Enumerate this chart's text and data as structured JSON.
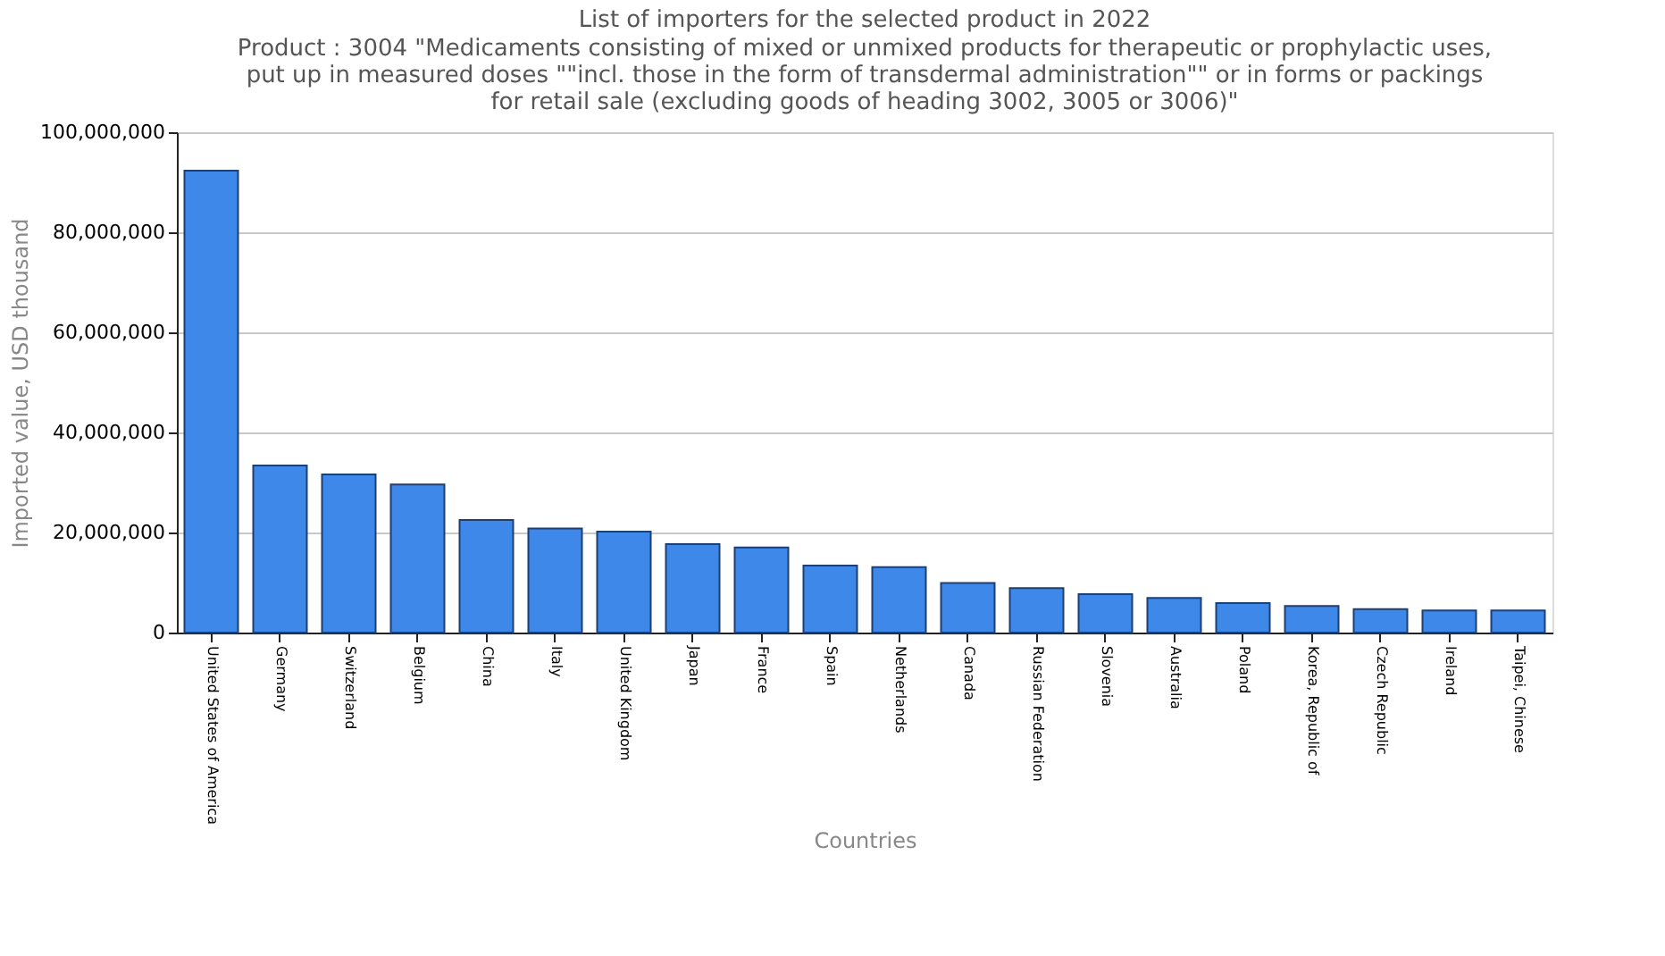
{
  "chart_data": {
    "type": "bar",
    "title": "List of importers for the selected product in 2022",
    "subtitle": "Product : 3004 \"Medicaments consisting of mixed or unmixed products for therapeutic or prophylactic uses, put up in measured doses \"\"incl. those in the form of transdermal administration\"\" or in forms or packings for retail sale (excluding goods of heading 3002, 3005 or 3006)\"",
    "xlabel": "Countries",
    "ylabel": "Imported value, USD thousand",
    "categories": [
      "United States of America",
      "Germany",
      "Switzerland",
      "Belgium",
      "China",
      "Italy",
      "United Kingdom",
      "Japan",
      "France",
      "Spain",
      "Netherlands",
      "Canada",
      "Russian Federation",
      "Slovenia",
      "Australia",
      "Poland",
      "Korea, Republic of",
      "Czech Republic",
      "Ireland",
      "Taipei, Chinese"
    ],
    "values": [
      92300000,
      33400000,
      31600000,
      29600000,
      22500000,
      20800000,
      20200000,
      17700000,
      17000000,
      13400000,
      13100000,
      9900000,
      8900000,
      7700000,
      6900000,
      5900000,
      5300000,
      4700000,
      4400000,
      4400000
    ],
    "color": "#3d88e8",
    "ylim": [
      0,
      100000000
    ],
    "yticks": [
      0,
      {
        "value": 20000000,
        "label": "20,000,000"
      },
      {
        "value": 40000000,
        "label": "40,000,000"
      },
      {
        "value": 60000000,
        "label": "60,000,000"
      },
      {
        "value": 80000000,
        "label": "80,000,000"
      },
      {
        "value": 100000000,
        "label": "100,000,000"
      }
    ],
    "grid": "y"
  }
}
